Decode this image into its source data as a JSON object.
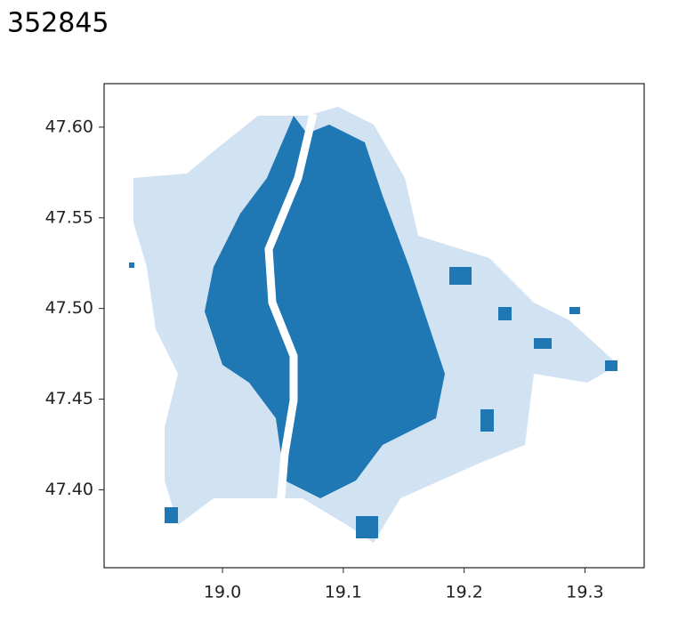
{
  "output_text": "352845",
  "chart_data": {
    "type": "map",
    "color": "#1f77b4",
    "xlim": [
      18.902,
      19.349
    ],
    "ylim": [
      47.357,
      47.624
    ],
    "xticks": [
      {
        "value": 19.0,
        "label": "19.0"
      },
      19.1,
      19.2,
      19.3
    ],
    "yticks": [
      {
        "value": 47.4,
        "label": "47.40"
      },
      47.45,
      {
        "value": 47.5,
        "label": "47.50"
      },
      47.55,
      {
        "value": 47.6,
        "label": "47.60"
      }
    ]
  }
}
